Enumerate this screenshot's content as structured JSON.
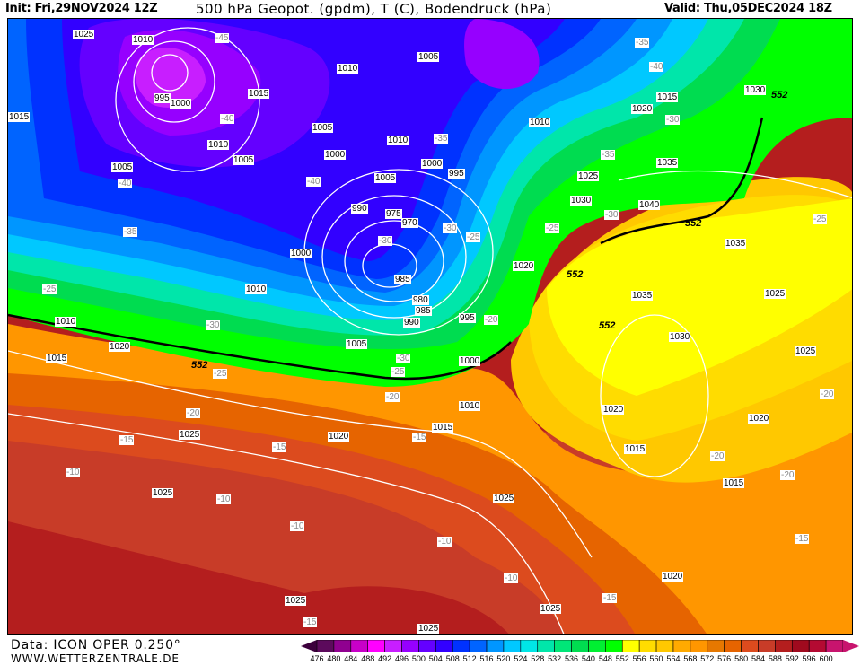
{
  "header": {
    "init": "Init: Fri,29NOV2024 12Z",
    "title": "500 hPa Geopot. (gpdm), T (C), Bodendruck (hPa)",
    "valid": "Valid: Thu,05DEC2024 18Z"
  },
  "footer": {
    "data_source": "Data: ICON OPER 0.250°",
    "website": "WWW.WETTERZENTRALE.DE"
  },
  "legend": {
    "ticks": [
      "476",
      "480",
      "484",
      "488",
      "492",
      "496",
      "500",
      "504",
      "508",
      "512",
      "516",
      "520",
      "524",
      "528",
      "532",
      "536",
      "540",
      "548",
      "552",
      "556",
      "560",
      "564",
      "568",
      "572",
      "576",
      "580",
      "584",
      "588",
      "592",
      "596",
      "600"
    ],
    "colors": [
      "#5c0a5c",
      "#900090",
      "#c800c8",
      "#ff00ff",
      "#c81eff",
      "#9600ff",
      "#6400ff",
      "#3200ff",
      "#0032ff",
      "#0064ff",
      "#0096ff",
      "#00c8ff",
      "#00e6e6",
      "#00e6aa",
      "#00e678",
      "#00dc50",
      "#00f032",
      "#00ff00",
      "#ffff00",
      "#ffdc00",
      "#ffc800",
      "#ffaa00",
      "#ff9600",
      "#e67800",
      "#e66400",
      "#dc4b1e",
      "#c83c28",
      "#b41e1e",
      "#a00a1e",
      "#b40a32",
      "#c8146e"
    ]
  },
  "map": {
    "pressure_labels": [
      "1025",
      "1015",
      "1010",
      "1005",
      "995",
      "1000",
      "1010",
      "1015",
      "1010",
      "1005",
      "1000",
      "1005",
      "1010",
      "1015",
      "1020",
      "1030",
      "1005",
      "1010",
      "1000",
      "995",
      "990",
      "975",
      "970",
      "985",
      "980",
      "985",
      "990",
      "995",
      "1000",
      "1010",
      "1015",
      "1020",
      "1025",
      "1030",
      "1035",
      "1040",
      "1035",
      "1030",
      "1025",
      "1025",
      "1020",
      "1020",
      "1015",
      "1015",
      "1020",
      "1025",
      "1025",
      "1025",
      "1025",
      "1020",
      "1025",
      "1010",
      "1005",
      "1000",
      "1005",
      "1010",
      "1015",
      "1020",
      "1025",
      "1035"
    ],
    "temperature_labels": [
      "-45",
      "-40",
      "-35",
      "-40",
      "-40",
      "-35",
      "-35",
      "-30",
      "-30",
      "-25",
      "-25",
      "-30",
      "-25",
      "-30",
      "-25",
      "-20",
      "-20",
      "-25",
      "-20",
      "-15",
      "-15",
      "-15",
      "-10",
      "-10",
      "-10",
      "-10",
      "-15",
      "-15",
      "-20",
      "-20",
      "-15",
      "-10",
      "-20",
      "-30",
      "-25",
      "-35",
      "-40",
      "-30"
    ],
    "geopotential_label": "552"
  }
}
